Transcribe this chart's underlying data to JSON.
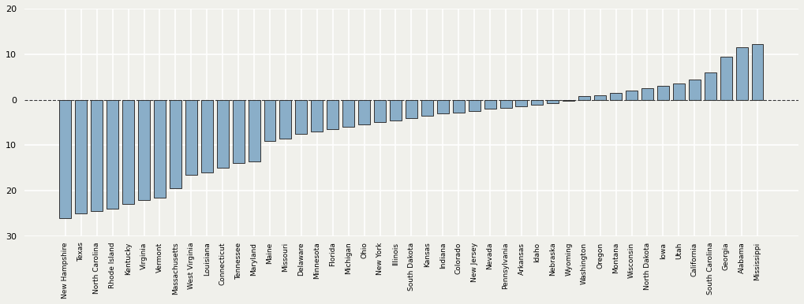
{
  "states": [
    "New Hampshire",
    "Texas",
    "North Carolina",
    "Rhode Island",
    "Kentucky",
    "Virginia",
    "Vermont",
    "Massachusetts",
    "West Virginia",
    "Louisiana",
    "Connecticut",
    "Tennessee",
    "Maryland",
    "Maine",
    "Missouri",
    "Delaware",
    "Minnesota",
    "Florida",
    "Michigan",
    "Ohio",
    "New York",
    "Illinois",
    "South Dakota",
    "Kansas",
    "Indiana",
    "Colorado",
    "New Jersey",
    "Nevada",
    "Pennsylvania",
    "Arkansas",
    "Idaho",
    "Nebraska",
    "Wyoming",
    "Washington",
    "Oregon",
    "Montana",
    "Wisconsin",
    "North Dakota",
    "Iowa",
    "Utah",
    "California",
    "South Carolina",
    "Georgia",
    "Alabama",
    "Mississippi"
  ],
  "values": [
    -26.0,
    -25.0,
    -24.5,
    -24.0,
    -23.0,
    -22.0,
    -21.5,
    -19.5,
    -16.5,
    -16.0,
    -15.0,
    -14.0,
    -13.5,
    -9.0,
    -8.5,
    -7.5,
    -7.0,
    -6.5,
    -6.0,
    -5.5,
    -5.0,
    -4.5,
    -4.0,
    -3.5,
    -3.0,
    -2.8,
    -2.5,
    -2.0,
    -1.8,
    -1.5,
    -1.2,
    -0.8,
    -0.3,
    0.8,
    1.0,
    1.5,
    2.0,
    2.5,
    3.0,
    3.5,
    4.5,
    6.0,
    9.5,
    11.5,
    12.2
  ],
  "bar_color": "#8aaec8",
  "bar_edge_color": "#333333",
  "bar_edge_width": 0.7,
  "background_color": "#f0f0eb",
  "grid_color": "#ffffff",
  "ylim": [
    -30,
    20
  ],
  "yticks": [
    -30,
    -20,
    -10,
    0,
    10,
    20
  ],
  "ytick_labels": [
    "30",
    "20",
    "10",
    "0",
    "10",
    "20"
  ]
}
